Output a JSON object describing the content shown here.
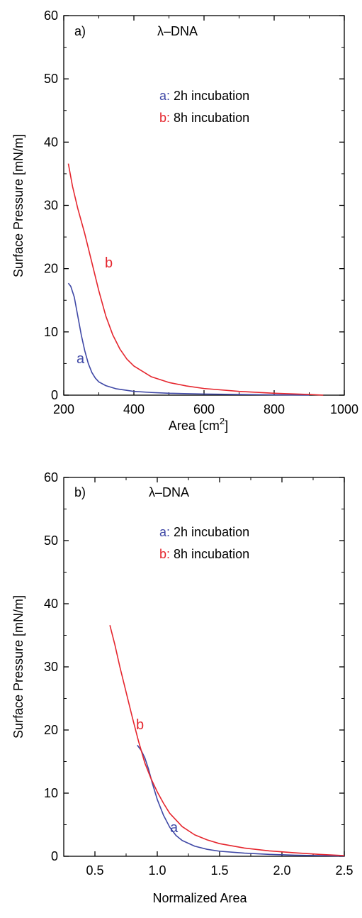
{
  "colors": {
    "a": "#3f48a6",
    "b": "#e5262e",
    "axis": "#000000"
  },
  "chart_data": [
    {
      "type": "line",
      "panel_label": "a)",
      "molecule_label": "λ–DNA",
      "xlabel_main": "Area [cm",
      "xlabel_sup": "2",
      "xlabel_end": "]",
      "ylabel": "Surface Pressure [mN/m]",
      "xlim": [
        200,
        1000
      ],
      "ylim": [
        0,
        60
      ],
      "xticks": [
        200,
        400,
        600,
        800,
        1000
      ],
      "yticks": [
        0,
        10,
        20,
        30,
        40,
        50,
        60
      ],
      "legend": [
        {
          "key": "a:",
          "text": " 2h incubation"
        },
        {
          "key": "b:",
          "text": " 8h incubation"
        }
      ],
      "curve_labels": {
        "a": "a",
        "b": "b"
      },
      "series": [
        {
          "id": "a",
          "x": [
            213,
            220,
            230,
            240,
            250,
            260,
            270,
            280,
            290,
            300,
            320,
            350,
            400,
            450,
            500,
            600,
            700,
            800,
            900
          ],
          "y": [
            17.7,
            17.2,
            15.5,
            12.5,
            9.5,
            7.0,
            5.0,
            3.6,
            2.7,
            2.1,
            1.5,
            1.0,
            0.6,
            0.42,
            0.3,
            0.18,
            0.1,
            0.05,
            0.02
          ]
        },
        {
          "id": "b",
          "x": [
            213,
            225,
            240,
            260,
            280,
            300,
            320,
            340,
            360,
            380,
            400,
            450,
            500,
            550,
            600,
            700,
            800,
            900,
            940
          ],
          "y": [
            36.6,
            33.0,
            29.5,
            25.5,
            21.0,
            16.5,
            12.5,
            9.5,
            7.3,
            5.7,
            4.6,
            2.9,
            2.0,
            1.45,
            1.05,
            0.6,
            0.3,
            0.1,
            0.0
          ]
        }
      ]
    },
    {
      "type": "line",
      "panel_label": "b)",
      "molecule_label": "λ–DNA",
      "xlabel": "Normalized Area",
      "ylabel": "Surface Pressure [mN/m]",
      "xlim": [
        0.25,
        2.5
      ],
      "ylim": [
        0,
        60
      ],
      "xticks": [
        0.5,
        1.0,
        1.5,
        2.0,
        2.5
      ],
      "xtick_labels": [
        "0.5",
        "1.0",
        "1.5",
        "2.0",
        "2.5"
      ],
      "yticks": [
        0,
        10,
        20,
        30,
        40,
        50,
        60
      ],
      "legend": [
        {
          "key": "a:",
          "text": " 2h incubation"
        },
        {
          "key": "b:",
          "text": " 8h incubation"
        }
      ],
      "curve_labels": {
        "a": "a",
        "b": "b"
      },
      "series": [
        {
          "id": "a",
          "x": [
            0.84,
            0.87,
            0.9,
            0.93,
            0.96,
            1.0,
            1.05,
            1.1,
            1.15,
            1.2,
            1.3,
            1.4,
            1.5,
            1.7,
            1.9,
            2.1,
            2.3,
            2.5
          ],
          "y": [
            17.6,
            16.8,
            15.6,
            13.8,
            11.6,
            9.0,
            6.5,
            4.6,
            3.3,
            2.5,
            1.6,
            1.1,
            0.8,
            0.5,
            0.3,
            0.18,
            0.1,
            0.05
          ]
        },
        {
          "id": "b",
          "x": [
            0.62,
            0.66,
            0.7,
            0.75,
            0.8,
            0.85,
            0.9,
            0.95,
            1.0,
            1.05,
            1.1,
            1.2,
            1.3,
            1.4,
            1.5,
            1.7,
            1.9,
            2.1,
            2.3,
            2.5
          ],
          "y": [
            36.6,
            33.5,
            30.0,
            26.0,
            22.0,
            18.2,
            14.8,
            12.3,
            10.2,
            8.4,
            6.8,
            4.7,
            3.4,
            2.6,
            2.0,
            1.3,
            0.85,
            0.55,
            0.3,
            0.1
          ]
        }
      ]
    }
  ]
}
